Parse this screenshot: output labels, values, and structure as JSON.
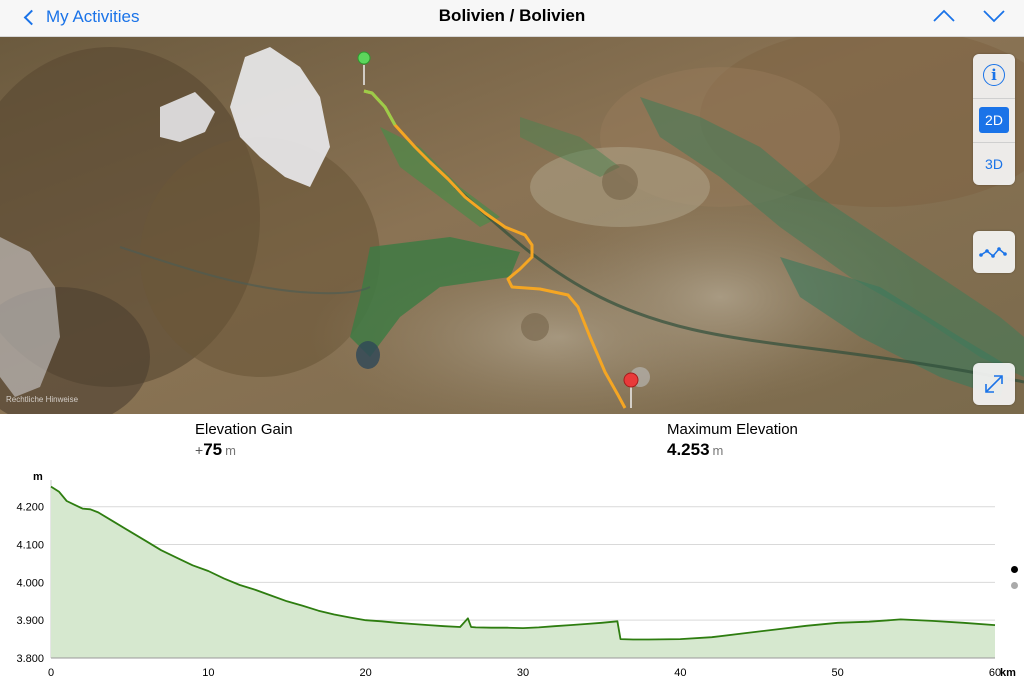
{
  "navbar": {
    "back_label": "My Activities",
    "title": "Bolivien / Bolivien"
  },
  "icons": {
    "back": "chevron-left-icon",
    "previous": "chevron-up-icon",
    "next": "chevron-down-icon",
    "info": "info-icon",
    "elevation_profile": "elevation-profile-icon",
    "fullscreen": "expand-icon",
    "start_pin": "start-pin-icon",
    "end_pin": "end-pin-icon"
  },
  "map": {
    "modes": {
      "mode_2d": "2D",
      "mode_3d": "3D"
    },
    "selected_mode": "2D",
    "attribution": "Rechtliche Hinweise"
  },
  "stats": {
    "elevation_gain": {
      "label": "Elevation Gain",
      "sign": "+",
      "value": "75",
      "unit": "m"
    },
    "max_elevation": {
      "label": "Maximum Elevation",
      "value": "4.253",
      "unit": "m"
    }
  },
  "colors": {
    "accent": "#1a73e8",
    "route": "#f5a623",
    "profile_line": "#2e7d10",
    "profile_fill": "#d6e8cf"
  },
  "pager": {
    "pages": 2,
    "current": 1
  },
  "chart_data": {
    "type": "area",
    "ylabel": "m",
    "xlabel": "km",
    "xlim": [
      0,
      60
    ],
    "ylim": [
      3800,
      4260
    ],
    "x_ticks": [
      "0",
      "10",
      "20",
      "30",
      "40",
      "50",
      "60"
    ],
    "y_ticks": [
      "4.200",
      "4.100",
      "4.000",
      "3.900",
      "3.800"
    ],
    "y_tick_values": [
      4200,
      4100,
      4000,
      3900,
      3800
    ],
    "grid": true,
    "series": [
      {
        "x": [
          0,
          0.5,
          1,
          1.5,
          2,
          2.5,
          3,
          4,
          5,
          6,
          7,
          8,
          9,
          10,
          11,
          12,
          13,
          14,
          15,
          16,
          17,
          18,
          19,
          20,
          21,
          22,
          23,
          24,
          25,
          26,
          26.5,
          26.7,
          27,
          28,
          29,
          30,
          31,
          32,
          33,
          34,
          35,
          36,
          36.2,
          37,
          38,
          40,
          42,
          44,
          46,
          48,
          50,
          52,
          54,
          56,
          58,
          60
        ],
        "y": [
          4253,
          4240,
          4215,
          4205,
          4195,
          4193,
          4185,
          4160,
          4135,
          4110,
          4085,
          4065,
          4045,
          4030,
          4010,
          3993,
          3980,
          3965,
          3950,
          3938,
          3925,
          3915,
          3907,
          3900,
          3897,
          3893,
          3890,
          3887,
          3884,
          3882,
          3905,
          3882,
          3881,
          3880,
          3880,
          3879,
          3881,
          3884,
          3887,
          3890,
          3893,
          3897,
          3850,
          3849,
          3849,
          3850,
          3855,
          3865,
          3875,
          3885,
          3893,
          3896,
          3902,
          3898,
          3893,
          3887
        ]
      }
    ]
  }
}
